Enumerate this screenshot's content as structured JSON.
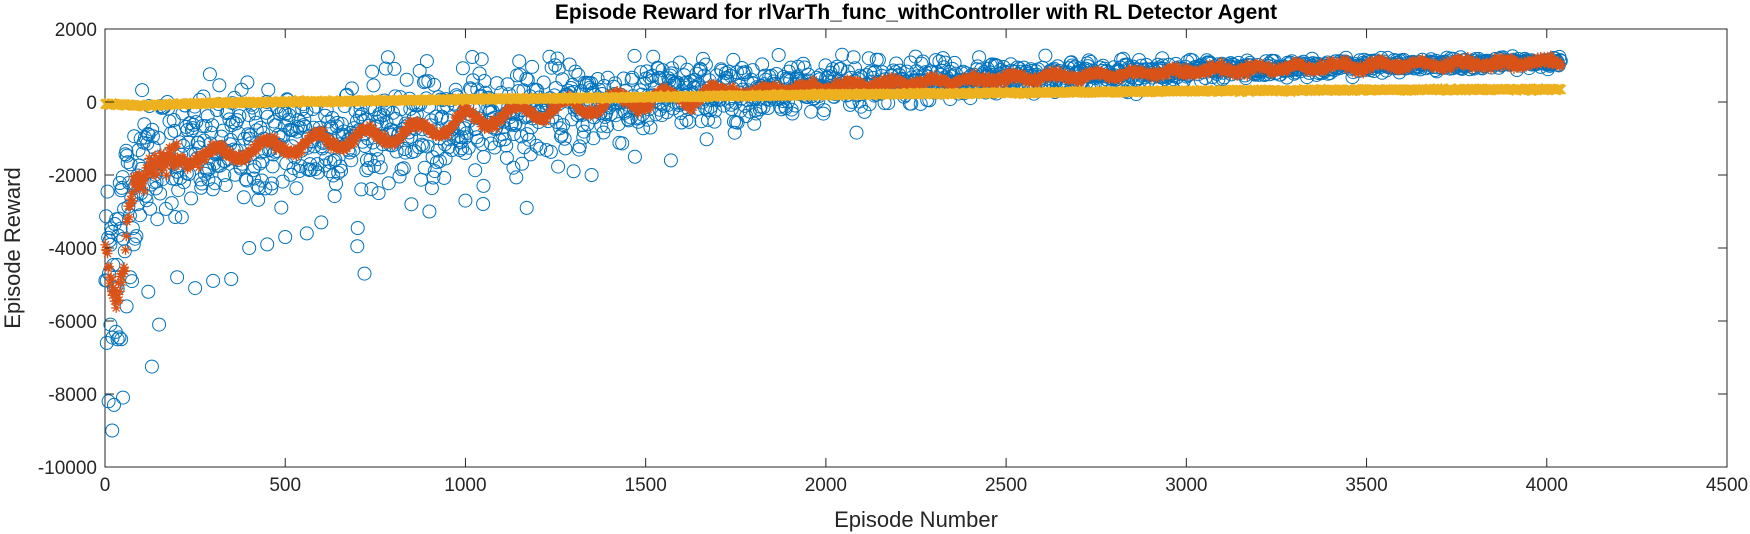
{
  "chart_data": {
    "type": "scatter",
    "title": "Episode Reward for rlVarTh_func_withController with RL Detector Agent",
    "xlabel": "Episode Number",
    "ylabel": "Episode Reward",
    "xlim": [
      0,
      4500
    ],
    "ylim": [
      -10000,
      2000
    ],
    "xticks": [
      "0",
      "500",
      "1000",
      "1500",
      "2000",
      "2500",
      "3000",
      "3500",
      "4000",
      "4500"
    ],
    "yticks": [
      "2000",
      "0",
      "-2000",
      "-4000",
      "-6000",
      "-8000",
      "-10000"
    ],
    "grid": false,
    "legend": "none",
    "episodes": 4040,
    "series": [
      {
        "marker": "o",
        "color": "#0072BD",
        "x": [
          5,
          10,
          15,
          20,
          25,
          30,
          35,
          40,
          45,
          50,
          60,
          70,
          80,
          90,
          100,
          120,
          130,
          150,
          200,
          250,
          300,
          350,
          700,
          720,
          1170,
          1300,
          1350,
          1470,
          1570,
          1000,
          1050,
          900,
          850,
          600,
          560,
          500,
          450,
          400
        ],
        "values": [
          -6600,
          -8200,
          -6100,
          -9000,
          -8300,
          -6300,
          -6500,
          -6450,
          -6500,
          -8100,
          -5600,
          -4800,
          -3900,
          -2800,
          -2500,
          -5200,
          -7250,
          -6100,
          -4800,
          -5100,
          -4900,
          -4850,
          -3950,
          -4700,
          -2900,
          -1900,
          -2000,
          -1500,
          -1600,
          -2700,
          -2300,
          -3000,
          -2800,
          -3300,
          -3600,
          -3700,
          -3900,
          -4000
        ]
      },
      {
        "marker": "*",
        "color": "#D95319",
        "x": [
          0,
          10,
          20,
          30,
          40,
          50,
          60,
          70,
          80,
          100,
          120,
          150,
          200,
          250,
          300,
          400,
          500,
          600,
          700,
          800,
          900,
          1000,
          1200,
          1400,
          1600,
          1800,
          2000,
          2200,
          2500,
          2800,
          3000,
          3300,
          3500,
          3800,
          4040
        ],
        "values": [
          -3700,
          -4700,
          -5500,
          -5700,
          -5400,
          -5000,
          -3600,
          -2600,
          -2200,
          -2000,
          -1600,
          -1800,
          -1600,
          -1400,
          -1500,
          -1300,
          -1200,
          -1100,
          -1000,
          -900,
          -750,
          -500,
          -250,
          -50,
          150,
          300,
          400,
          500,
          650,
          750,
          850,
          950,
          1000,
          1050,
          1100
        ]
      },
      {
        "marker": "x",
        "color": "#EDB120",
        "x": [
          0,
          100,
          200,
          300,
          500,
          800,
          1000,
          1500,
          2000,
          2500,
          3000,
          3500,
          4040
        ],
        "values": [
          -50,
          -100,
          -60,
          -30,
          0,
          40,
          70,
          130,
          200,
          250,
          300,
          330,
          350
        ]
      }
    ]
  }
}
